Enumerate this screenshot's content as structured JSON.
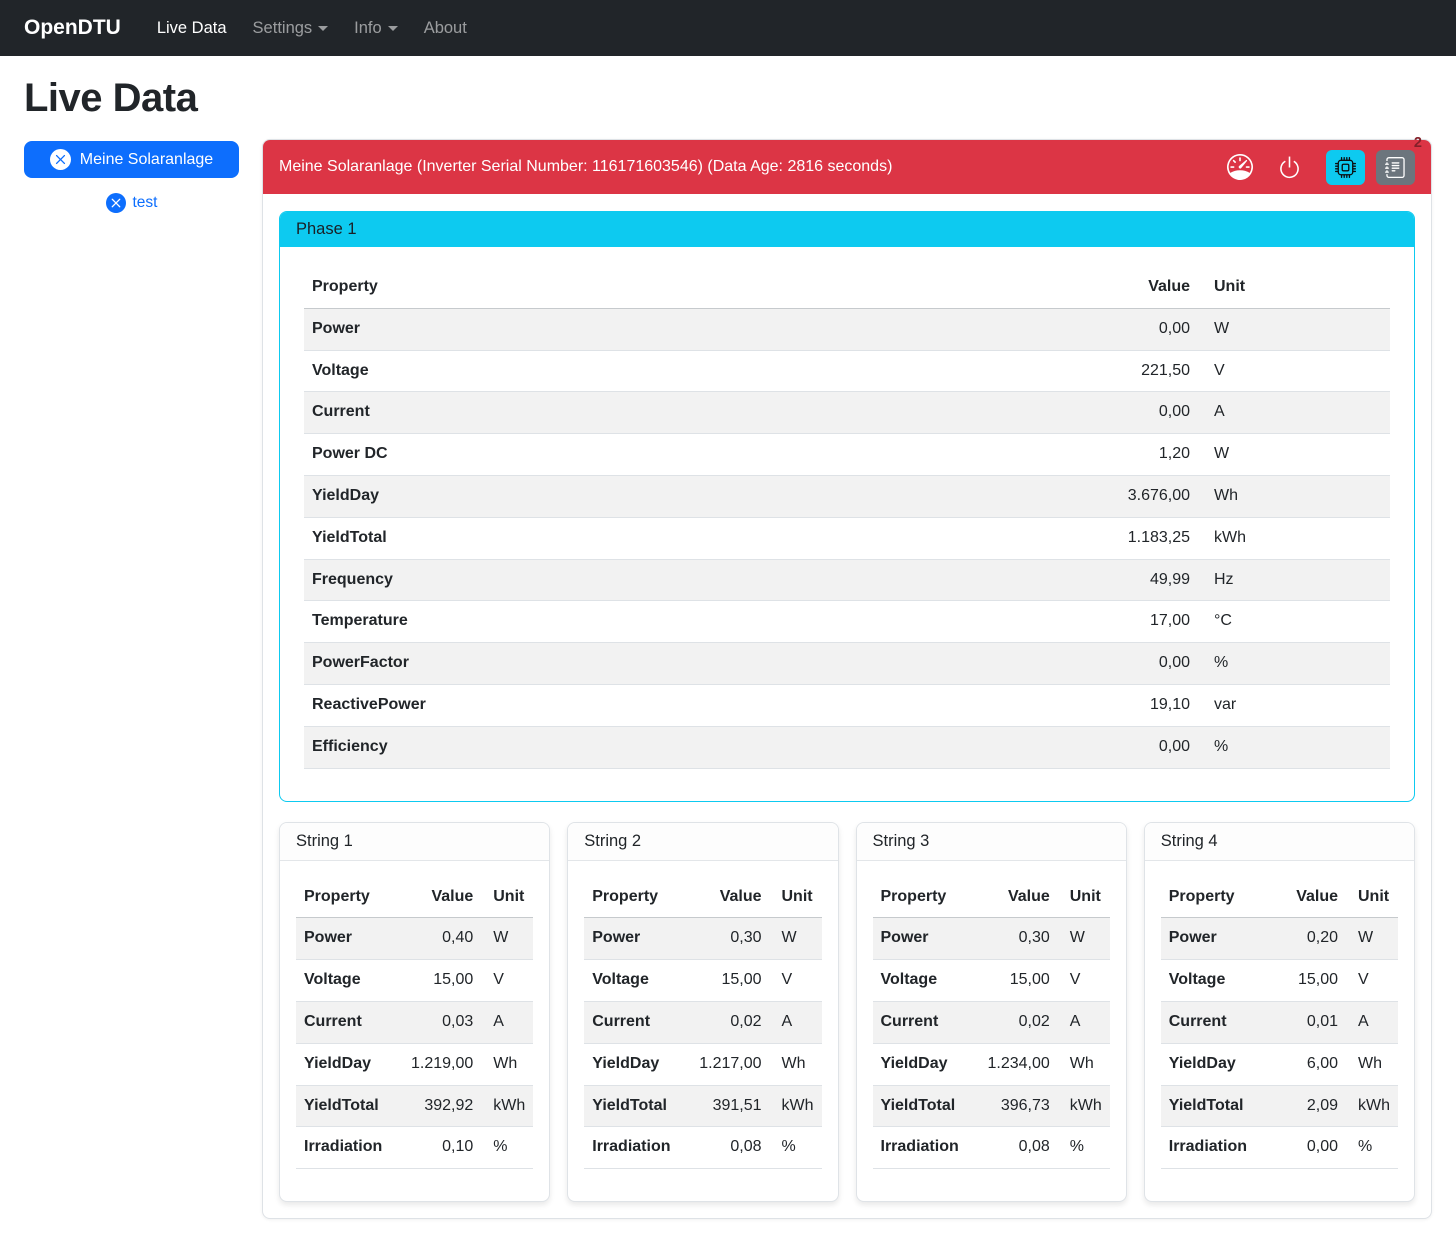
{
  "navbar": {
    "brand": "OpenDTU",
    "items": [
      {
        "label": "Live Data",
        "active": true,
        "dropdown": false
      },
      {
        "label": "Settings",
        "active": false,
        "dropdown": true
      },
      {
        "label": "Info",
        "active": false,
        "dropdown": true
      },
      {
        "label": "About",
        "active": false,
        "dropdown": false
      }
    ]
  },
  "page": {
    "title": "Live Data"
  },
  "sidebar": {
    "inverter_button": "Meine Solaranlage",
    "test_link": "test"
  },
  "inverter": {
    "header": "Meine Solaranlage (Inverter Serial Number: 116171603546) (Data Age: 2816 seconds)",
    "toolbar": {
      "icons": [
        "speedometer-icon",
        "power-icon",
        "cpu-icon",
        "journal-icon"
      ],
      "badge_count": "2"
    },
    "phase": {
      "title": "Phase 1",
      "columns": [
        "Property",
        "Value",
        "Unit"
      ],
      "rows": [
        [
          "Power",
          "0,00",
          "W"
        ],
        [
          "Voltage",
          "221,50",
          "V"
        ],
        [
          "Current",
          "0,00",
          "A"
        ],
        [
          "Power DC",
          "1,20",
          "W"
        ],
        [
          "YieldDay",
          "3.676,00",
          "Wh"
        ],
        [
          "YieldTotal",
          "1.183,25",
          "kWh"
        ],
        [
          "Frequency",
          "49,99",
          "Hz"
        ],
        [
          "Temperature",
          "17,00",
          "°C"
        ],
        [
          "PowerFactor",
          "0,00",
          "%"
        ],
        [
          "ReactivePower",
          "19,10",
          "var"
        ],
        [
          "Efficiency",
          "0,00",
          "%"
        ]
      ]
    },
    "strings": [
      {
        "title": "String 1",
        "columns": [
          "Property",
          "Value",
          "Unit"
        ],
        "rows": [
          [
            "Power",
            "0,40",
            "W"
          ],
          [
            "Voltage",
            "15,00",
            "V"
          ],
          [
            "Current",
            "0,03",
            "A"
          ],
          [
            "YieldDay",
            "1.219,00",
            "Wh"
          ],
          [
            "YieldTotal",
            "392,92",
            "kWh"
          ],
          [
            "Irradiation",
            "0,10",
            "%"
          ]
        ]
      },
      {
        "title": "String 2",
        "columns": [
          "Property",
          "Value",
          "Unit"
        ],
        "rows": [
          [
            "Power",
            "0,30",
            "W"
          ],
          [
            "Voltage",
            "15,00",
            "V"
          ],
          [
            "Current",
            "0,02",
            "A"
          ],
          [
            "YieldDay",
            "1.217,00",
            "Wh"
          ],
          [
            "YieldTotal",
            "391,51",
            "kWh"
          ],
          [
            "Irradiation",
            "0,08",
            "%"
          ]
        ]
      },
      {
        "title": "String 3",
        "columns": [
          "Property",
          "Value",
          "Unit"
        ],
        "rows": [
          [
            "Power",
            "0,30",
            "W"
          ],
          [
            "Voltage",
            "15,00",
            "V"
          ],
          [
            "Current",
            "0,02",
            "A"
          ],
          [
            "YieldDay",
            "1.234,00",
            "Wh"
          ],
          [
            "YieldTotal",
            "396,73",
            "kWh"
          ],
          [
            "Irradiation",
            "0,08",
            "%"
          ]
        ]
      },
      {
        "title": "String 4",
        "columns": [
          "Property",
          "Value",
          "Unit"
        ],
        "rows": [
          [
            "Power",
            "0,20",
            "W"
          ],
          [
            "Voltage",
            "15,00",
            "V"
          ],
          [
            "Current",
            "0,01",
            "A"
          ],
          [
            "YieldDay",
            "6,00",
            "Wh"
          ],
          [
            "YieldTotal",
            "2,09",
            "kWh"
          ],
          [
            "Irradiation",
            "0,00",
            "%"
          ]
        ]
      }
    ]
  },
  "colors": {
    "primary": "#0d6efd",
    "danger": "#dc3545",
    "info": "#0dcaf0",
    "secondary": "#6c757d",
    "navbar_bg": "#212529",
    "badge_text": "#842029",
    "stripe": "#f2f2f2"
  }
}
